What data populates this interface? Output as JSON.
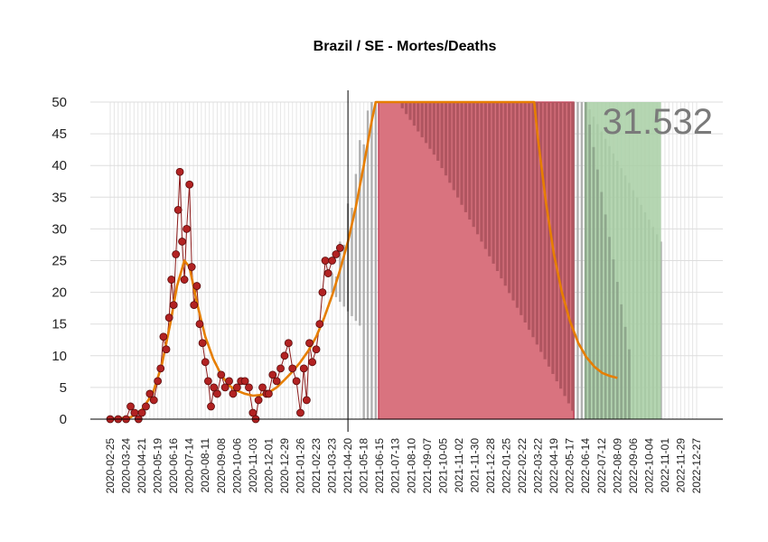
{
  "chart_data": {
    "type": "line",
    "title": "Brazil / SE - Mortes/Deaths",
    "xlabel": "",
    "ylabel": "",
    "ylim": [
      0,
      50
    ],
    "yticks": [
      0,
      5,
      10,
      15,
      20,
      25,
      30,
      35,
      40,
      45,
      50
    ],
    "x_start": "2020-02-25",
    "x_end": "2022-12-27",
    "xticks": [
      "2020-02-25",
      "2020-03-24",
      "2020-04-21",
      "2020-05-19",
      "2020-06-16",
      "2020-07-14",
      "2020-08-11",
      "2020-09-08",
      "2020-10-06",
      "2020-11-03",
      "2020-12-01",
      "2020-12-29",
      "2021-01-26",
      "2021-02-23",
      "2021-03-23",
      "2021-04-20",
      "2021-05-18",
      "2021-06-15",
      "2021-07-13",
      "2021-08-10",
      "2021-09-07",
      "2021-10-05",
      "2021-11-02",
      "2021-11-30",
      "2021-12-28",
      "2022-01-25",
      "2022-02-22",
      "2022-03-22",
      "2022-04-19",
      "2022-05-17",
      "2022-06-14",
      "2022-07-12",
      "2022-08-09",
      "2022-09-06",
      "2022-10-04",
      "2022-11-01",
      "2022-11-29",
      "2022-12-27"
    ],
    "total_label": "31.532",
    "current_date": "2021-04-20",
    "grid": true,
    "colors": {
      "observed_points": "#b22222",
      "observed_edge": "#5a0d0d",
      "observed_line": "#8b1a1a",
      "trend_line": "#e67e00",
      "forecast_band": "#b0b0b0",
      "peak_band": "#d9737f",
      "peak_band_dark": "#b05560",
      "peak_border": "#c0304a",
      "tail_band": "#a8cfa5",
      "tail_band_dark": "#8fa88d",
      "counter": "#7a7a7a"
    },
    "peak_region": {
      "start": "2021-06-13",
      "end": "2022-05-24",
      "label": ""
    },
    "tail_region": {
      "start": "2022-06-14",
      "end": "2022-10-25",
      "label": ""
    },
    "observed_series": {
      "name": "",
      "points": [
        [
          "2020-02-25",
          0
        ],
        [
          "2020-03-10",
          0
        ],
        [
          "2020-03-24",
          0
        ],
        [
          "2020-04-01",
          2
        ],
        [
          "2020-04-08",
          1
        ],
        [
          "2020-04-15",
          0
        ],
        [
          "2020-04-21",
          1
        ],
        [
          "2020-04-28",
          2
        ],
        [
          "2020-05-05",
          4
        ],
        [
          "2020-05-12",
          3
        ],
        [
          "2020-05-19",
          6
        ],
        [
          "2020-05-24",
          8
        ],
        [
          "2020-05-29",
          13
        ],
        [
          "2020-06-03",
          11
        ],
        [
          "2020-06-08",
          16
        ],
        [
          "2020-06-12",
          22
        ],
        [
          "2020-06-16",
          18
        ],
        [
          "2020-06-20",
          26
        ],
        [
          "2020-06-24",
          33
        ],
        [
          "2020-06-27",
          39
        ],
        [
          "2020-07-01",
          28
        ],
        [
          "2020-07-05",
          22
        ],
        [
          "2020-07-09",
          30
        ],
        [
          "2020-07-14",
          37
        ],
        [
          "2020-07-18",
          24
        ],
        [
          "2020-07-22",
          18
        ],
        [
          "2020-07-27",
          21
        ],
        [
          "2020-08-01",
          15
        ],
        [
          "2020-08-06",
          12
        ],
        [
          "2020-08-11",
          9
        ],
        [
          "2020-08-16",
          6
        ],
        [
          "2020-08-21",
          2
        ],
        [
          "2020-08-26",
          5
        ],
        [
          "2020-09-01",
          4
        ],
        [
          "2020-09-08",
          7
        ],
        [
          "2020-09-15",
          5
        ],
        [
          "2020-09-22",
          6
        ],
        [
          "2020-09-29",
          4
        ],
        [
          "2020-10-06",
          5
        ],
        [
          "2020-10-13",
          6
        ],
        [
          "2020-10-20",
          6
        ],
        [
          "2020-10-27",
          5
        ],
        [
          "2020-11-03",
          1
        ],
        [
          "2020-11-08",
          0
        ],
        [
          "2020-11-13",
          3
        ],
        [
          "2020-11-20",
          5
        ],
        [
          "2020-11-27",
          4
        ],
        [
          "2020-12-01",
          4
        ],
        [
          "2020-12-08",
          7
        ],
        [
          "2020-12-15",
          6
        ],
        [
          "2020-12-22",
          8
        ],
        [
          "2020-12-29",
          10
        ],
        [
          "2021-01-05",
          12
        ],
        [
          "2021-01-12",
          8
        ],
        [
          "2021-01-19",
          6
        ],
        [
          "2021-01-26",
          1
        ],
        [
          "2021-02-01",
          8
        ],
        [
          "2021-02-06",
          3
        ],
        [
          "2021-02-11",
          12
        ],
        [
          "2021-02-16",
          9
        ],
        [
          "2021-02-23",
          11
        ],
        [
          "2021-03-01",
          15
        ],
        [
          "2021-03-06",
          20
        ],
        [
          "2021-03-11",
          25
        ],
        [
          "2021-03-16",
          23
        ],
        [
          "2021-03-23",
          25
        ],
        [
          "2021-03-30",
          26
        ],
        [
          "2021-04-06",
          27
        ]
      ]
    },
    "trend_series": {
      "name": "",
      "points": [
        [
          "2020-02-25",
          0
        ],
        [
          "2020-04-01",
          0.3
        ],
        [
          "2020-04-21",
          1.5
        ],
        [
          "2020-05-10",
          4
        ],
        [
          "2020-05-26",
          8.5
        ],
        [
          "2020-06-10",
          15
        ],
        [
          "2020-06-22",
          21
        ],
        [
          "2020-07-05",
          25
        ],
        [
          "2020-07-14",
          24
        ],
        [
          "2020-07-28",
          18
        ],
        [
          "2020-08-11",
          13
        ],
        [
          "2020-08-25",
          9.5
        ],
        [
          "2020-09-08",
          7
        ],
        [
          "2020-09-22",
          5.3
        ],
        [
          "2020-10-06",
          4.5
        ],
        [
          "2020-10-20",
          4.0
        ],
        [
          "2020-11-03",
          3.7
        ],
        [
          "2020-11-17",
          3.8
        ],
        [
          "2020-12-01",
          4.2
        ],
        [
          "2020-12-15",
          5.0
        ],
        [
          "2020-12-29",
          6.2
        ],
        [
          "2021-01-12",
          7.5
        ],
        [
          "2021-01-26",
          9.0
        ],
        [
          "2021-02-09",
          10.8
        ],
        [
          "2021-02-23",
          13.0
        ],
        [
          "2021-03-09",
          16.0
        ],
        [
          "2021-03-23",
          19.5
        ],
        [
          "2021-04-06",
          23.5
        ],
        [
          "2021-04-20",
          28
        ],
        [
          "2021-05-04",
          33.5
        ],
        [
          "2021-05-18",
          40
        ],
        [
          "2021-06-01",
          47
        ],
        [
          "2021-06-08",
          51
        ],
        [
          "2022-03-15",
          51
        ],
        [
          "2022-03-22",
          44
        ],
        [
          "2022-04-05",
          34
        ],
        [
          "2022-04-19",
          26
        ],
        [
          "2022-05-03",
          20
        ],
        [
          "2022-05-17",
          15.5
        ],
        [
          "2022-06-01",
          12
        ],
        [
          "2022-06-15",
          9.8
        ],
        [
          "2022-06-29",
          8.3
        ],
        [
          "2022-07-13",
          7.3
        ],
        [
          "2022-07-27",
          6.8
        ],
        [
          "2022-08-09",
          6.5
        ]
      ]
    }
  }
}
